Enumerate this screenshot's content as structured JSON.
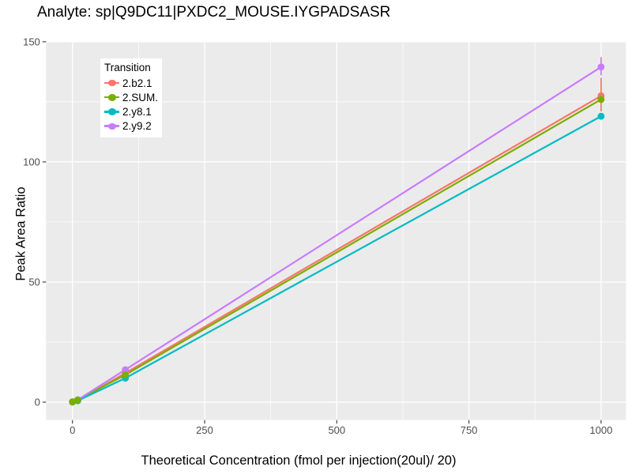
{
  "chart_data": {
    "type": "line",
    "title": "Analyte: sp|Q9DC11|PXDC2_MOUSE.IYGPADSASR",
    "xlabel": "Theoretical Concentration (fmol per injection(20ul)/ 20)",
    "ylabel": "Peak Area Ratio",
    "legend_title": "Transition",
    "legend_position": "top-left-inset",
    "grid": true,
    "panel_background": "#EBEBEB",
    "gridline_color": "#FFFFFF",
    "tick_label_color": "#4D4D4D",
    "tick_mark_color": "#333333",
    "x": [
      0,
      10,
      100,
      1000
    ],
    "series": [
      {
        "name": "2.b2.1",
        "color": "#F8766D",
        "values": [
          0.1,
          0.8,
          12.1,
          127.5
        ],
        "error_low": [
          null,
          null,
          11.0,
          121.0
        ],
        "error_high": [
          null,
          null,
          13.2,
          135.0
        ]
      },
      {
        "name": "2.SUM.",
        "color": "#7CAE00",
        "values": [
          0.15,
          0.9,
          11.4,
          126.0
        ],
        "error_low": [
          null,
          null,
          null,
          null
        ],
        "error_high": [
          null,
          null,
          null,
          null
        ]
      },
      {
        "name": "2.y8.1",
        "color": "#00BCC2",
        "values": [
          0.05,
          0.6,
          10.0,
          119.0
        ],
        "error_low": [
          null,
          null,
          null,
          null
        ],
        "error_high": [
          null,
          null,
          null,
          null
        ]
      },
      {
        "name": "2.y9.2",
        "color": "#C77CFF",
        "values": [
          0.05,
          1.0,
          13.5,
          139.5
        ],
        "error_low": [
          null,
          null,
          null,
          136.0
        ],
        "error_high": [
          null,
          null,
          null,
          143.6
        ]
      }
    ],
    "x_ticks": [
      0,
      250,
      500,
      750,
      1000
    ],
    "y_ticks": [
      0,
      50,
      100,
      150
    ],
    "x_minor_ticks": [
      125,
      375,
      625,
      875
    ],
    "y_minor_ticks": [
      25,
      75,
      125
    ],
    "xlim": [
      -50,
      1047
    ],
    "ylim": [
      -7.45,
      150.05
    ]
  }
}
